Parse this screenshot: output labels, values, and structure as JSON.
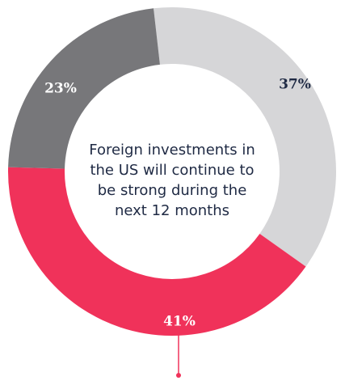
{
  "chart_data": {
    "type": "donut",
    "center_text": [
      "Foreign investments in",
      "the US will continue to",
      "be strong during the",
      "next 12 months"
    ],
    "values": [
      37,
      41,
      23
    ],
    "value_labels": [
      "37%",
      "41%",
      "23%"
    ],
    "colors": [
      "#d6d6d8",
      "#f0325a",
      "#77777a"
    ],
    "label_colors": [
      "#1f2a44",
      "#ffffff",
      "#ffffff"
    ]
  }
}
